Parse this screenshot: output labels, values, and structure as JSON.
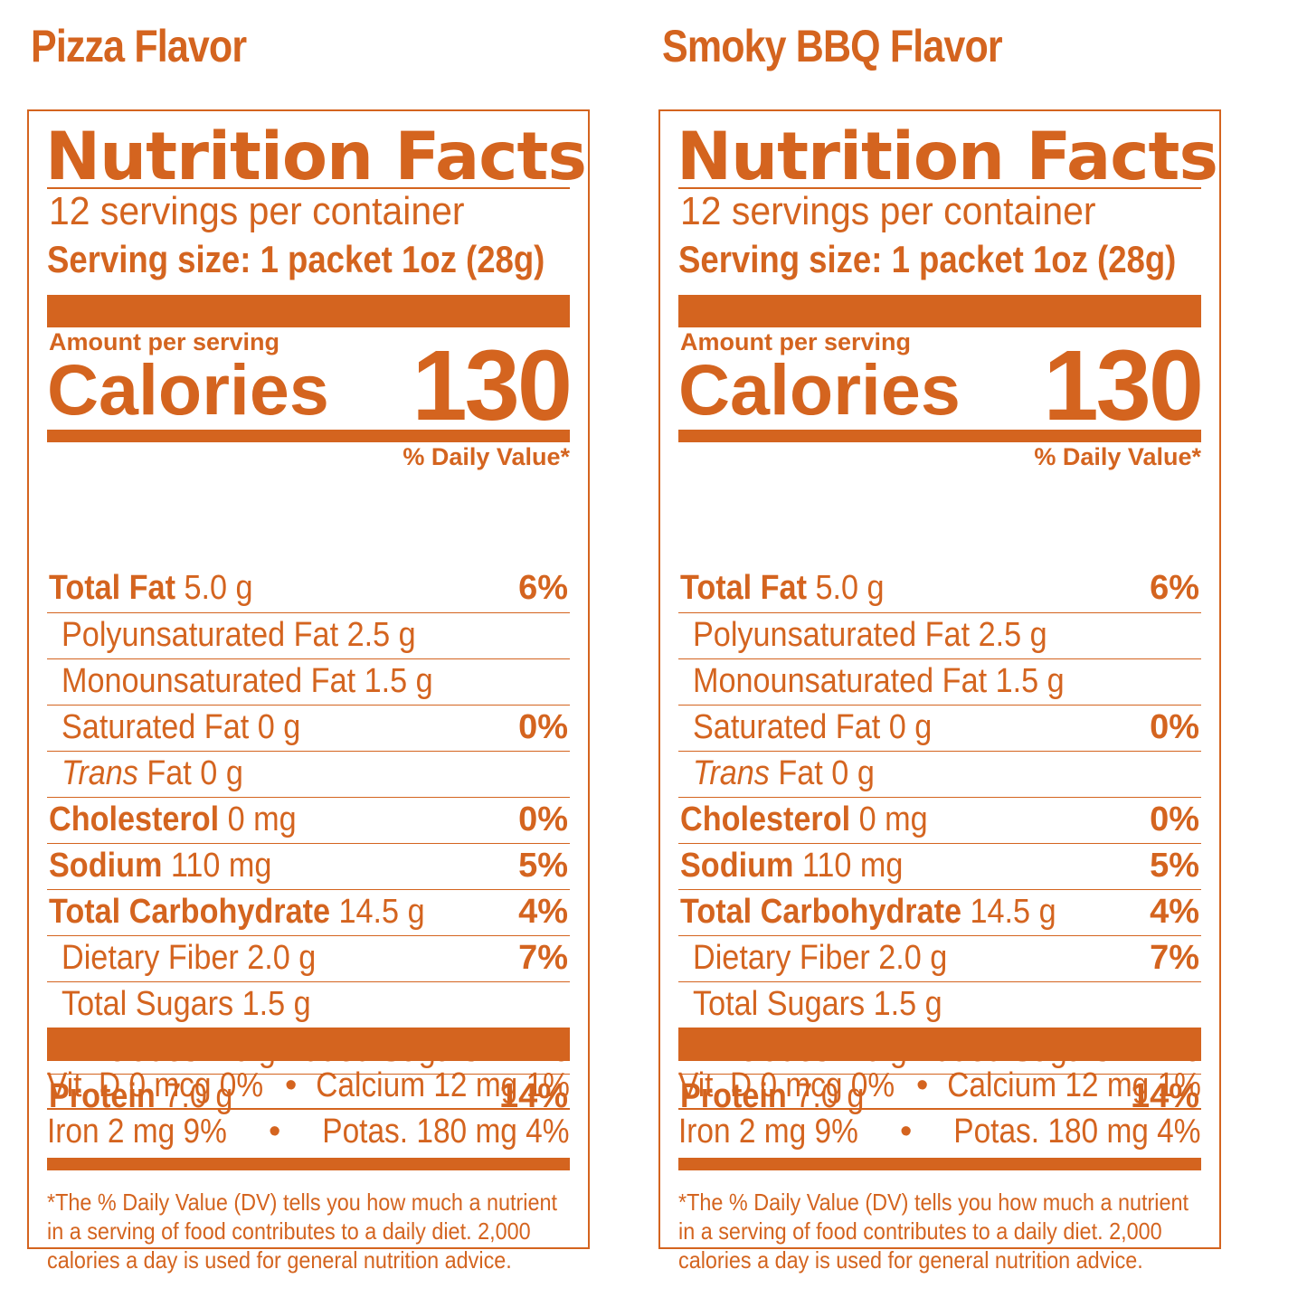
{
  "panels": [
    {
      "flavor": "Pizza Flavor",
      "title": "Nutrition Facts",
      "servings_per_container": "12 servings per container",
      "serving_size": "Serving size: 1 packet 1oz (28g)",
      "amount_per_serving": "Amount per serving",
      "calories_label": "Calories",
      "calories_value": "130",
      "daily_value_header": "% Daily Value*",
      "nutrients": [
        {
          "name": "Total Fat",
          "amount": "5.0 g",
          "dv": "6%"
        },
        {
          "name": "Polyunsaturated Fat 2.5 g",
          "amount": "",
          "dv": ""
        },
        {
          "name": "Monounsaturated Fat 1.5 g",
          "amount": "",
          "dv": ""
        },
        {
          "name": "Saturated Fat 0 g",
          "amount": "",
          "dv": "0%"
        },
        {
          "name": "Trans",
          "amount": "Fat 0 g",
          "dv": ""
        },
        {
          "name": "Cholesterol",
          "amount": "0 mg",
          "dv": "0%"
        },
        {
          "name": "Sodium",
          "amount": "110 mg",
          "dv": "5%"
        },
        {
          "name": "Total Carbohydrate",
          "amount": "14.5 g",
          "dv": "4%"
        },
        {
          "name": "Dietary Fiber 2.0 g",
          "amount": "",
          "dv": "7%"
        },
        {
          "name": "Total Sugars 1.5 g",
          "amount": "",
          "dv": ""
        },
        {
          "name": "Includes 1.0 g Added Sugars",
          "amount": "",
          "dv": "2%"
        },
        {
          "name": "Protein",
          "amount": "7.0 g",
          "dv": "14%"
        }
      ],
      "vitamins": [
        {
          "left": "Vit. D 0 mcg 0%",
          "sep": "•",
          "right": "Calcium 12 mg 1%"
        },
        {
          "left": "Iron 2 mg 9%",
          "sep": "•",
          "right": "Potas. 180 mg 4%"
        }
      ],
      "footnote": "*The % Daily Value (DV) tells you how much a nutrient in a serving of food contributes to a daily diet.  2,000 calories a day is used for general nutrition advice."
    },
    {
      "flavor": "Smoky BBQ Flavor",
      "title": "Nutrition Facts",
      "servings_per_container": "12 servings per container",
      "serving_size": "Serving size: 1 packet 1oz (28g)",
      "amount_per_serving": "Amount per serving",
      "calories_label": "Calories",
      "calories_value": "130",
      "daily_value_header": "% Daily Value*",
      "nutrients": [
        {
          "name": "Total Fat",
          "amount": "5.0 g",
          "dv": "6%"
        },
        {
          "name": "Polyunsaturated Fat 2.5 g",
          "amount": "",
          "dv": ""
        },
        {
          "name": "Monounsaturated Fat 1.5 g",
          "amount": "",
          "dv": ""
        },
        {
          "name": "Saturated Fat 0 g",
          "amount": "",
          "dv": "0%"
        },
        {
          "name": "Trans",
          "amount": "Fat 0 g",
          "dv": ""
        },
        {
          "name": "Cholesterol",
          "amount": "0 mg",
          "dv": "0%"
        },
        {
          "name": "Sodium",
          "amount": "110 mg",
          "dv": "5%"
        },
        {
          "name": "Total Carbohydrate",
          "amount": "14.5 g",
          "dv": "4%"
        },
        {
          "name": "Dietary Fiber 2.0 g",
          "amount": "",
          "dv": "7%"
        },
        {
          "name": "Total Sugars 1.5 g",
          "amount": "",
          "dv": ""
        },
        {
          "name": "Includes 1.0 g Added Sugars",
          "amount": "",
          "dv": "2%"
        },
        {
          "name": "Protein",
          "amount": "7.0 g",
          "dv": "14%"
        }
      ],
      "vitamins": [
        {
          "left": "Vit. D 0 mcg 0%",
          "sep": "•",
          "right": "Calcium 12 mg 1%"
        },
        {
          "left": "Iron 2 mg 9%",
          "sep": "•",
          "right": "Potas. 180 mg 4%"
        }
      ],
      "footnote": "*The % Daily Value (DV) tells you how much a nutrient in a serving of food contributes to a daily diet.  2,000 calories a day is used for general nutrition advice."
    }
  ],
  "accent_color": "#d4641f"
}
